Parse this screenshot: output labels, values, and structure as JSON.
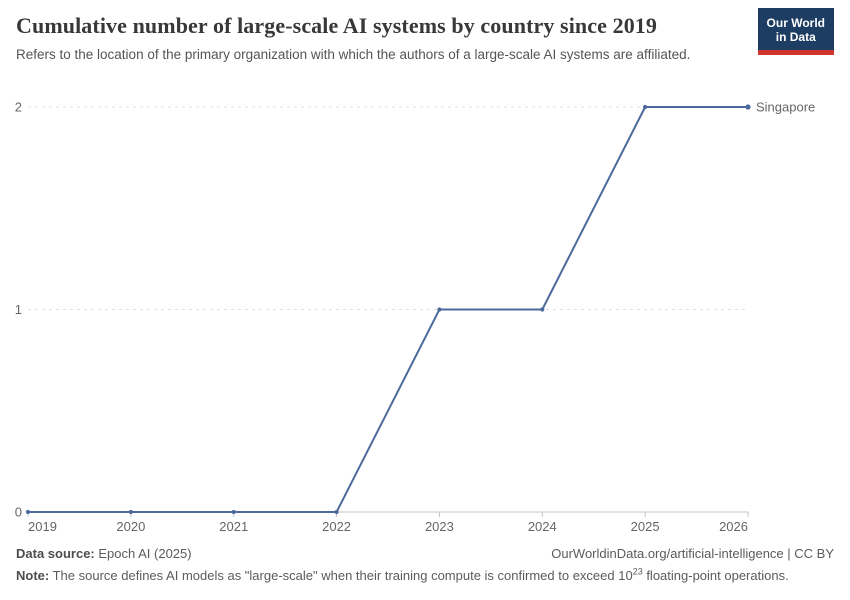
{
  "header": {
    "title": "Cumulative number of large-scale AI systems by country since 2019",
    "subtitle": "Refers to the location of the primary organization with which the authors of a large-scale AI systems are affiliated."
  },
  "logo": {
    "line1": "Our World",
    "line2": "in Data",
    "bg_color": "#1d3d63",
    "bar_color": "#d0342c"
  },
  "chart_data": {
    "type": "line",
    "title": "Cumulative number of large-scale AI systems by country since 2019",
    "subtitle": "Refers to the location of the primary organization with which the authors of a large-scale AI systems are affiliated.",
    "x": [
      2019,
      2020,
      2021,
      2022,
      2023,
      2024,
      2025,
      2026
    ],
    "xticks": [
      2019,
      2020,
      2021,
      2022,
      2023,
      2024,
      2025,
      2026
    ],
    "yticks": [
      0,
      1,
      2
    ],
    "xlim": [
      2019,
      2026
    ],
    "ylim": [
      0,
      2
    ],
    "xlabel": "",
    "ylabel": "",
    "grid": "horizontal-dashed",
    "legend_position": "end-of-line",
    "series": [
      {
        "name": "Singapore",
        "color": "#4c6a9c",
        "values": [
          0,
          0,
          0,
          0,
          1,
          1,
          2,
          2
        ]
      }
    ]
  },
  "colors": {
    "grid": "#e0e0e0",
    "axis": "#c4c4c4",
    "axis_text": "#666666"
  },
  "footer": {
    "source_label": "Data source:",
    "source_value": " Epoch AI (2025)",
    "link_text": "OurWorldinData.org/artificial-intelligence | CC BY",
    "note_label": "Note:",
    "note_before_sup": " The source defines AI models as \"large-scale\" when their training compute is confirmed to exceed 10",
    "note_sup": "23",
    "note_after_sup": " floating-point operations."
  }
}
